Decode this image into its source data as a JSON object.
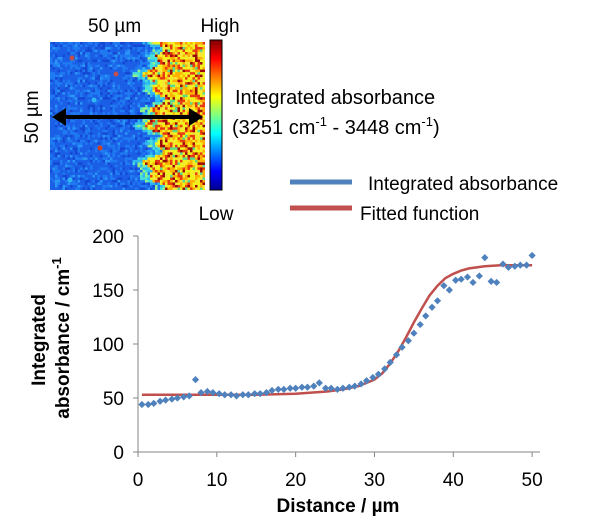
{
  "map": {
    "top_label": "50  µm",
    "side_label": "50 µm",
    "colorbar_high": "High",
    "colorbar_low": "Low",
    "caption_line1": "Integrated absorbance",
    "caption_line2_parts": [
      "(3251 cm",
      "-1",
      " - 3448 cm",
      "-1",
      ")"
    ],
    "colormap": [
      "#00008f",
      "#0000ff",
      "#0080ff",
      "#00ffff",
      "#80ff80",
      "#ffff00",
      "#ff8000",
      "#ff0000",
      "#800000"
    ]
  },
  "chart_data": {
    "type": "scatter",
    "ylabel_line1": "Integrated",
    "ylabel_line2_parts": [
      "absorbance / cm",
      "-1"
    ],
    "xlabel": "Distance / µm",
    "xlim": [
      0,
      51
    ],
    "ylim": [
      0,
      200
    ],
    "xticks": [
      0,
      10,
      20,
      30,
      40,
      50
    ],
    "yticks": [
      0,
      50,
      100,
      150,
      200
    ],
    "legend_position": "top-right",
    "series": [
      {
        "name": "Integrated absorbance",
        "kind": "points",
        "color": "#4f81bd",
        "x": [
          0.5,
          1.3,
          2.0,
          2.8,
          3.5,
          4.3,
          5.0,
          5.8,
          6.5,
          7.3,
          8.0,
          8.8,
          9.5,
          10.3,
          11.0,
          11.8,
          12.5,
          13.3,
          14.0,
          14.8,
          15.5,
          16.3,
          17.0,
          17.8,
          18.5,
          19.3,
          20.0,
          20.8,
          21.5,
          22.3,
          23.0,
          23.8,
          24.5,
          25.3,
          26.0,
          26.8,
          27.5,
          28.3,
          29.0,
          29.8,
          30.5,
          31.3,
          32.0,
          32.8,
          33.5,
          34.3,
          35.0,
          35.8,
          36.5,
          37.3,
          38.0,
          38.8,
          39.5,
          40.3,
          41.0,
          41.8,
          42.5,
          43.3,
          44.0,
          44.8,
          45.5,
          46.3,
          47.0,
          47.8,
          48.5,
          49.3,
          50.0
        ],
        "y": [
          44,
          44,
          45,
          47,
          48,
          49,
          50,
          51,
          52,
          67,
          55,
          56,
          55,
          54,
          53,
          53,
          52,
          53,
          53,
          54,
          54,
          55,
          57,
          58,
          58,
          59,
          59,
          60,
          60,
          61,
          64,
          59,
          59,
          58,
          59,
          60,
          61,
          63,
          66,
          69,
          72,
          77,
          83,
          90,
          97,
          103,
          110,
          118,
          126,
          134,
          140,
          154,
          150,
          159,
          160,
          162,
          157,
          163,
          180,
          158,
          157,
          174,
          171,
          172,
          173,
          173,
          182
        ]
      },
      {
        "name": "Fitted function",
        "kind": "line",
        "color": "#c0504d",
        "x": [
          0.5,
          5,
          10,
          15,
          20,
          22,
          24,
          26,
          28,
          30,
          31,
          32,
          33,
          34,
          35,
          36,
          37,
          38,
          39,
          40,
          41,
          42,
          44,
          46,
          48,
          50
        ],
        "y": [
          53,
          53,
          53,
          53,
          54,
          55,
          56,
          58,
          61,
          67,
          73,
          82,
          93,
          106,
          120,
          133,
          145,
          154,
          161,
          165,
          168,
          170,
          172,
          173,
          173,
          173
        ]
      }
    ]
  }
}
